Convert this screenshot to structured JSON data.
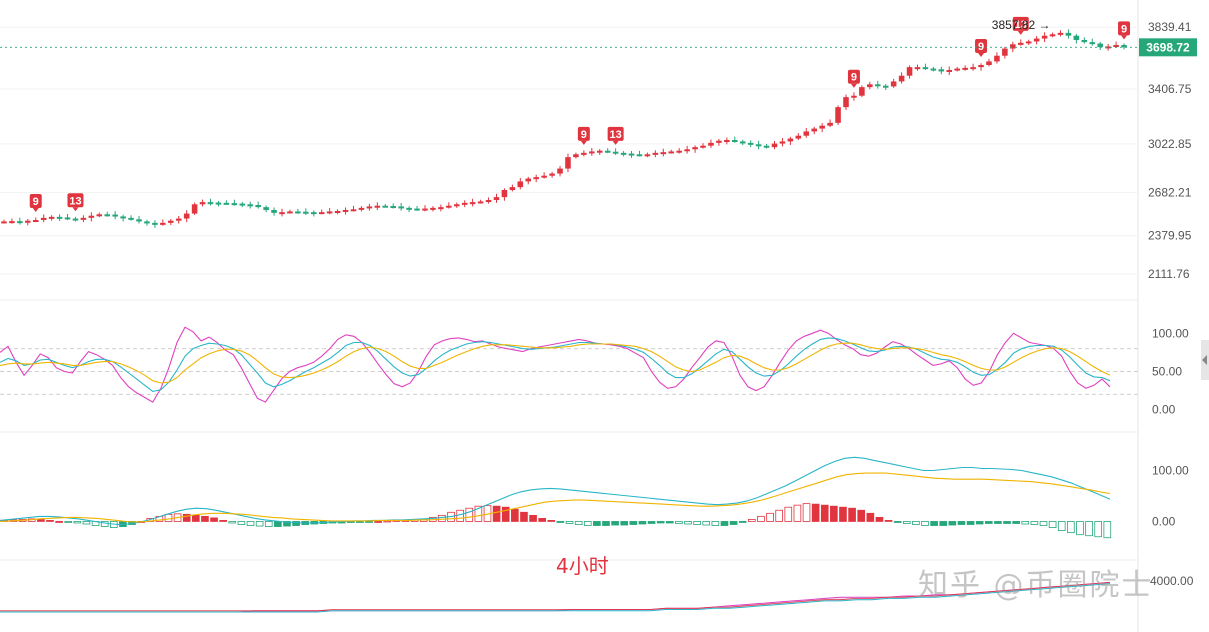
{
  "timeframe_label": "4小时",
  "watermark": "知乎 @币圈院士",
  "colors": {
    "up": "#e0353f",
    "down": "#26a77a",
    "k": "#e040c0",
    "d": "#29b6c8",
    "j": "#f0b400",
    "macd_dif": "#29b6c8",
    "macd_dea": "#f0b400",
    "badge": "#26a77a",
    "td": "#e0353f"
  },
  "chart_data": [
    {
      "panel": "price",
      "type": "candlestick",
      "y_ticks": [
        "3839.41",
        "3406.75",
        "3022.85",
        "2682.21",
        "2379.95",
        "2111.76"
      ],
      "current_price": "3698.72",
      "high_marker": "3857.82 →",
      "td_markers": [
        {
          "label": "9",
          "index": 4
        },
        {
          "label": "13",
          "index": 9
        },
        {
          "label": "9",
          "index": 73
        },
        {
          "label": "13",
          "index": 77
        },
        {
          "label": "9",
          "index": 107
        },
        {
          "label": "9",
          "index": 123
        },
        {
          "label": "13",
          "index": 128
        },
        {
          "label": "9",
          "index": 154
        }
      ],
      "close": [
        2480,
        2482,
        2478,
        2485,
        2490,
        2505,
        2512,
        2508,
        2500,
        2495,
        2505,
        2520,
        2530,
        2528,
        2515,
        2505,
        2495,
        2480,
        2470,
        2460,
        2470,
        2485,
        2500,
        2535,
        2600,
        2615,
        2612,
        2610,
        2608,
        2605,
        2600,
        2595,
        2580,
        2560,
        2540,
        2545,
        2550,
        2548,
        2545,
        2540,
        2545,
        2550,
        2553,
        2560,
        2565,
        2575,
        2585,
        2590,
        2588,
        2585,
        2575,
        2570,
        2565,
        2570,
        2575,
        2580,
        2590,
        2600,
        2610,
        2615,
        2620,
        2630,
        2650,
        2700,
        2720,
        2760,
        2780,
        2790,
        2800,
        2815,
        2850,
        2930,
        2950,
        2960,
        2970,
        2975,
        2968,
        2960,
        2955,
        2950,
        2945,
        2950,
        2960,
        2965,
        2970,
        2975,
        2985,
        3000,
        3010,
        3030,
        3045,
        3050,
        3040,
        3030,
        3020,
        3010,
        3000,
        3025,
        3040,
        3060,
        3080,
        3110,
        3130,
        3150,
        3170,
        3280,
        3350,
        3360,
        3420,
        3440,
        3430,
        3425,
        3460,
        3500,
        3560,
        3560,
        3550,
        3545,
        3530,
        3540,
        3550,
        3555,
        3560,
        3575,
        3600,
        3640,
        3690,
        3720,
        3730,
        3740,
        3760,
        3780,
        3790,
        3800,
        3780,
        3750,
        3735,
        3725,
        3700,
        3705,
        3715,
        3698.72
      ],
      "ylim": [
        2000,
        3960
      ]
    },
    {
      "panel": "kdj",
      "type": "line",
      "y_ticks": [
        "100.00",
        "50.00",
        "0.00"
      ],
      "series": [
        {
          "values": [
            75,
            83,
            62,
            45,
            58,
            73,
            68,
            55,
            50,
            48,
            63,
            76,
            72,
            66,
            58,
            42,
            30,
            22,
            16,
            10,
            28,
            55,
            88,
            108,
            102,
            90,
            95,
            88,
            78,
            72,
            55,
            35,
            15,
            10,
            25,
            40,
            50,
            55,
            58,
            62,
            70,
            80,
            92,
            98,
            96,
            88,
            75,
            60,
            46,
            34,
            30,
            35,
            50,
            70,
            85,
            90,
            93,
            94,
            92,
            89,
            90,
            86,
            82,
            80,
            78,
            76,
            80,
            82,
            84,
            86,
            88,
            90,
            92,
            90,
            87,
            86,
            85,
            83,
            80,
            74,
            68,
            50,
            36,
            28,
            30,
            40,
            55,
            68,
            82,
            90,
            88,
            70,
            45,
            30,
            25,
            30,
            45,
            62,
            78,
            90,
            96,
            100,
            104,
            100,
            92,
            85,
            80,
            72,
            70,
            74,
            82,
            89,
            86,
            80,
            72,
            65,
            58,
            60,
            64,
            55,
            40,
            32,
            35,
            50,
            72,
            88,
            100,
            94,
            88,
            86,
            84,
            80,
            70,
            50,
            35,
            28,
            32,
            40,
            30
          ]
        },
        {
          "values": [
            62,
            67,
            64,
            58,
            60,
            65,
            66,
            62,
            58,
            55,
            58,
            63,
            66,
            66,
            63,
            56,
            48,
            40,
            32,
            24,
            26,
            36,
            52,
            70,
            80,
            84,
            87,
            86,
            84,
            80,
            72,
            60,
            48,
            35,
            30,
            33,
            38,
            44,
            50,
            55,
            61,
            67,
            75,
            84,
            88,
            88,
            84,
            76,
            66,
            56,
            48,
            44,
            46,
            54,
            64,
            72,
            78,
            82,
            86,
            88,
            89,
            88,
            86,
            84,
            82,
            80,
            79,
            80,
            81,
            82,
            84,
            86,
            88,
            88,
            87,
            86,
            86,
            84,
            82,
            79,
            75,
            67,
            58,
            48,
            42,
            42,
            47,
            55,
            64,
            73,
            79,
            76,
            66,
            56,
            48,
            44,
            45,
            51,
            60,
            70,
            79,
            86,
            92,
            94,
            93,
            90,
            86,
            81,
            77,
            76,
            78,
            82,
            83,
            82,
            79,
            74,
            69,
            66,
            65,
            62,
            56,
            49,
            45,
            46,
            53,
            62,
            74,
            80,
            83,
            84,
            84,
            83,
            78,
            69,
            58,
            48,
            43,
            42,
            38
          ]
        },
        {
          "values": [
            58,
            60,
            61,
            60,
            60,
            61,
            62,
            61,
            60,
            58,
            58,
            60,
            62,
            63,
            63,
            60,
            56,
            51,
            45,
            38,
            35,
            36,
            42,
            52,
            60,
            68,
            73,
            77,
            79,
            79,
            77,
            72,
            64,
            55,
            47,
            43,
            42,
            43,
            45,
            48,
            52,
            57,
            63,
            70,
            76,
            80,
            82,
            80,
            76,
            70,
            63,
            57,
            54,
            54,
            58,
            62,
            67,
            72,
            76,
            80,
            83,
            85,
            85,
            85,
            84,
            83,
            82,
            81,
            81,
            81,
            82,
            83,
            85,
            86,
            86,
            86,
            86,
            85,
            84,
            83,
            80,
            76,
            70,
            63,
            56,
            52,
            50,
            52,
            57,
            62,
            68,
            71,
            70,
            66,
            60,
            55,
            52,
            52,
            55,
            60,
            66,
            72,
            78,
            83,
            86,
            87,
            87,
            85,
            82,
            80,
            79,
            80,
            81,
            81,
            80,
            78,
            75,
            72,
            70,
            67,
            63,
            58,
            54,
            52,
            52,
            56,
            62,
            68,
            73,
            77,
            80,
            81,
            80,
            76,
            70,
            63,
            56,
            50,
            45
          ]
        }
      ],
      "ylim": [
        -20,
        120
      ]
    },
    {
      "panel": "macd",
      "type": "bar",
      "y_ticks": [
        "100.00",
        "0.00"
      ],
      "series": [
        {
          "values": [
            2,
            3,
            4,
            5,
            4,
            2,
            0,
            -2,
            -3,
            -5,
            -8,
            -10,
            -12,
            -10,
            -6,
            0,
            6,
            10,
            14,
            15,
            14,
            12,
            10,
            7,
            2,
            -3,
            -6,
            -8,
            -9,
            -10,
            -10,
            -9,
            -8,
            -6,
            -5,
            -4,
            -3,
            -3,
            -2,
            -2,
            -1,
            0,
            1,
            2,
            3,
            4,
            5,
            8,
            12,
            18,
            22,
            26,
            30,
            31,
            30,
            28,
            24,
            18,
            12,
            6,
            2,
            -2,
            -4,
            -6,
            -8,
            -8,
            -8,
            -7,
            -7,
            -6,
            -5,
            -4,
            -3,
            -3,
            -4,
            -5,
            -6,
            -7,
            -8,
            -8,
            -6,
            -2,
            4,
            10,
            16,
            22,
            28,
            32,
            35,
            34,
            32,
            30,
            28,
            26,
            22,
            16,
            8,
            2,
            -2,
            -4,
            -6,
            -8,
            -8,
            -8,
            -7,
            -6,
            -6,
            -5,
            -4,
            -4,
            -4,
            -4,
            -5,
            -6,
            -8,
            -12,
            -18,
            -22,
            -26,
            -28,
            -30,
            -32
          ]
        },
        {
          "values": [
            2,
            4,
            6,
            8,
            10,
            10,
            9,
            7,
            5,
            2,
            -1,
            -4,
            -6,
            -5,
            -2,
            2,
            8,
            14,
            20,
            24,
            26,
            25,
            22,
            18,
            14,
            10,
            6,
            3,
            1,
            -1,
            -2,
            -3,
            -3,
            -2,
            -1,
            0,
            1,
            1,
            2,
            2,
            3,
            3,
            4,
            5,
            6,
            8,
            10,
            14,
            20,
            28,
            36,
            44,
            52,
            58,
            62,
            64,
            65,
            64,
            62,
            60,
            58,
            56,
            54,
            52,
            50,
            48,
            46,
            44,
            42,
            40,
            38,
            36,
            34,
            33,
            34,
            36,
            40,
            46,
            54,
            62,
            70,
            80,
            90,
            100,
            110,
            118,
            124,
            126,
            124,
            120,
            116,
            112,
            108,
            104,
            100,
            100,
            102,
            104,
            106,
            106,
            104,
            104,
            103,
            102,
            100,
            96,
            92,
            88,
            82,
            76,
            68,
            60,
            52,
            44
          ]
        },
        {
          "values": [
            0,
            1,
            2,
            3,
            5,
            6,
            7,
            8,
            8,
            7,
            6,
            4,
            2,
            0,
            -1,
            0,
            2,
            4,
            7,
            10,
            13,
            15,
            16,
            16,
            15,
            14,
            12,
            10,
            8,
            7,
            5,
            4,
            3,
            2,
            1,
            1,
            1,
            1,
            1,
            2,
            2,
            2,
            2,
            3,
            3,
            4,
            5,
            6,
            8,
            11,
            14,
            18,
            22,
            26,
            30,
            34,
            38,
            40,
            41,
            42,
            42,
            41,
            40,
            39,
            38,
            37,
            36,
            35,
            34,
            33,
            32,
            31,
            30,
            30,
            31,
            32,
            34,
            37,
            41,
            46,
            52,
            58,
            64,
            70,
            76,
            82,
            88,
            92,
            94,
            95,
            95,
            95,
            93,
            91,
            89,
            87,
            85,
            84,
            83,
            83,
            83,
            83,
            82,
            81,
            80,
            79,
            78,
            76,
            74,
            71,
            68,
            65,
            62,
            58,
            55
          ]
        }
      ],
      "ylim": [
        -60,
        160
      ]
    },
    {
      "panel": "bottom",
      "type": "area",
      "y_ticks": [
        "4000.00"
      ],
      "series": [
        {
          "values": [
            0,
            0,
            0,
            0,
            0,
            0,
            0,
            0,
            0,
            0,
            0,
            0,
            0,
            0,
            0,
            0,
            1,
            1,
            1,
            1,
            1,
            1,
            1,
            1,
            1,
            1,
            1,
            1,
            1,
            1,
            1,
            1,
            1,
            1,
            1,
            1,
            2,
            2,
            2,
            2,
            2,
            2,
            3,
            3,
            3,
            4,
            5,
            6,
            7,
            8,
            9,
            10,
            11,
            12,
            12,
            12,
            12,
            13,
            13,
            14,
            14,
            15,
            16,
            17,
            18,
            19,
            20,
            21,
            22,
            23,
            24
          ]
        },
        {
          "values": [
            0,
            0,
            0,
            0,
            0,
            0,
            0,
            0,
            0,
            0,
            0,
            0,
            0,
            0,
            0,
            0,
            0,
            0,
            0,
            0,
            0,
            1,
            1,
            1,
            1,
            1,
            1,
            1,
            1,
            1,
            1,
            1,
            1,
            1,
            1,
            1,
            1,
            1,
            1,
            1,
            1,
            1,
            2,
            2,
            2,
            3,
            3,
            4,
            5,
            6,
            7,
            8,
            9,
            9,
            10,
            10,
            11,
            11,
            12,
            12,
            13,
            14,
            15,
            16,
            17,
            18,
            19,
            20,
            21,
            22,
            23
          ]
        }
      ],
      "ylim": [
        0,
        30
      ]
    }
  ]
}
